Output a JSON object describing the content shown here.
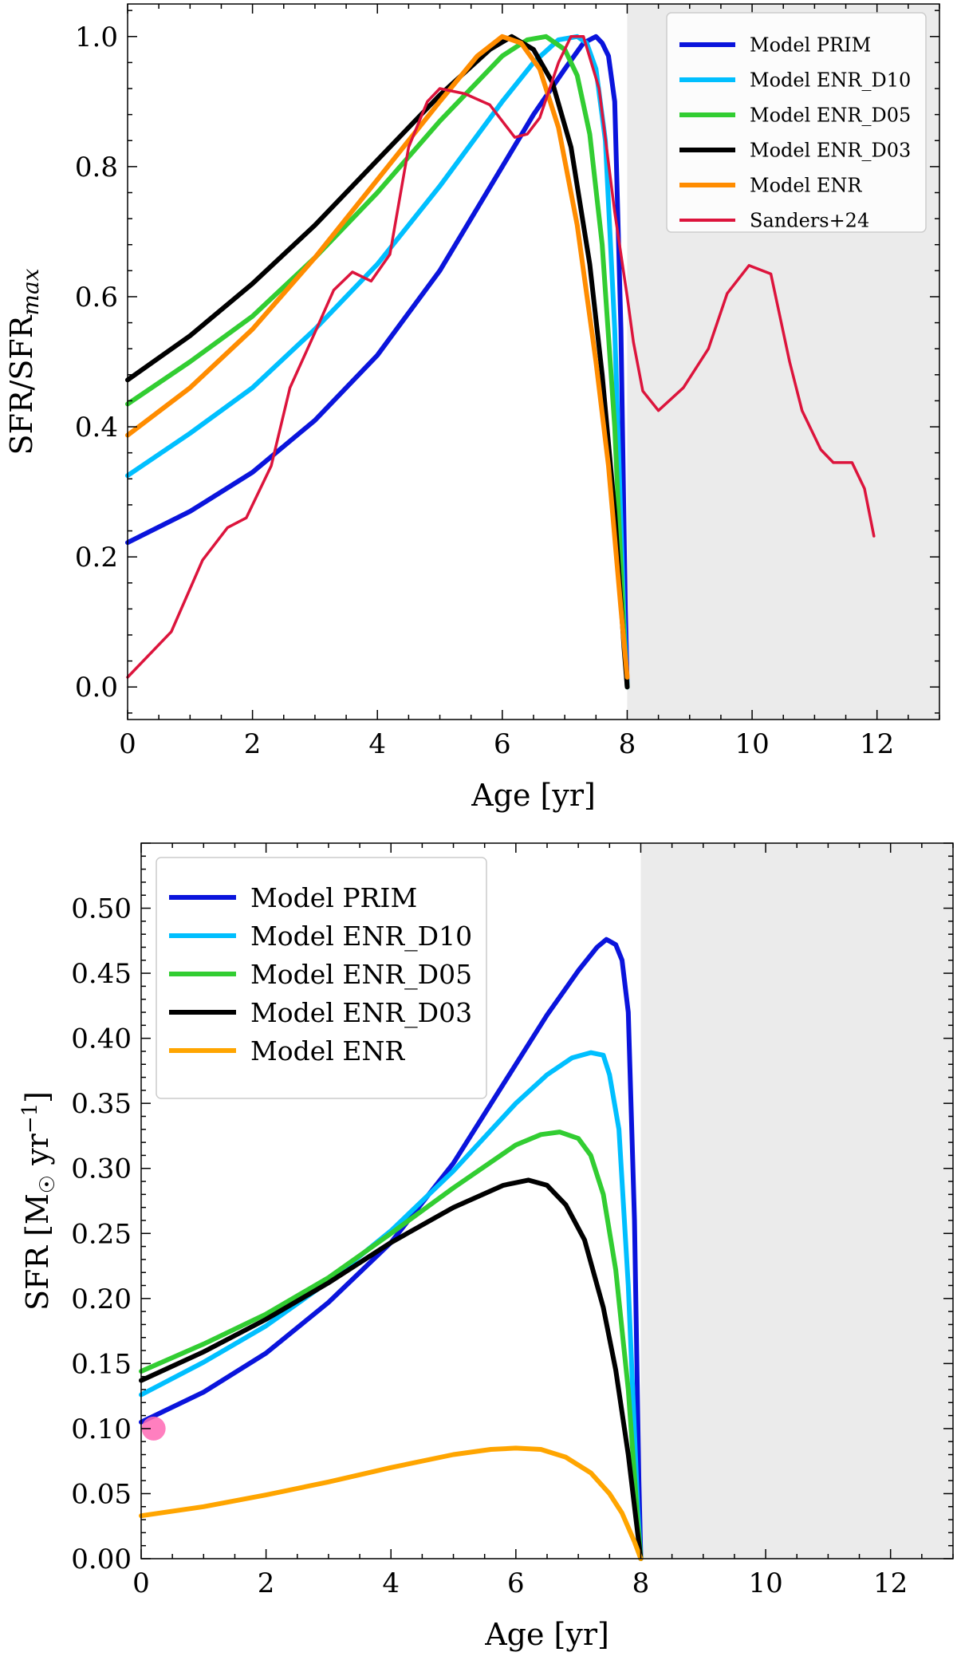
{
  "chart_data": [
    {
      "type": "line",
      "xlabel": "Age [yr]",
      "ylabel": "SFR/SFR",
      "ylabel_sub": "max",
      "xlim": [
        0,
        13
      ],
      "ylim": [
        -0.05,
        1.05
      ],
      "xticks": [
        0,
        2,
        4,
        6,
        8,
        10,
        12
      ],
      "xtick_labels": [
        "0",
        "2",
        "4",
        "6",
        "8",
        "10",
        "12"
      ],
      "yticks": [
        0.0,
        0.2,
        0.4,
        0.6,
        0.8,
        1.0
      ],
      "ytick_labels": [
        "0.0",
        "0.2",
        "0.4",
        "0.6",
        "0.8",
        "1.0"
      ],
      "shaded_region": [
        8,
        13
      ],
      "shade_color": "#ebebeb",
      "legend_position": "top-right",
      "series": [
        {
          "name": "Model PRIM",
          "color": "#0a14dc",
          "x": [
            0,
            1,
            2,
            3,
            4,
            5,
            6,
            6.5,
            7,
            7.3,
            7.5,
            7.6,
            7.7,
            7.8,
            7.9,
            7.97,
            8.0
          ],
          "y": [
            0.222,
            0.27,
            0.33,
            0.41,
            0.51,
            0.64,
            0.8,
            0.88,
            0.95,
            0.99,
            1.0,
            0.99,
            0.97,
            0.9,
            0.55,
            0.12,
            0.0
          ]
        },
        {
          "name": "Model ENR_D10",
          "color": "#00bfff",
          "x": [
            0,
            1,
            2,
            3,
            4,
            5,
            6,
            6.5,
            6.9,
            7.2,
            7.35,
            7.5,
            7.65,
            7.8,
            7.95,
            8.0
          ],
          "y": [
            0.325,
            0.39,
            0.46,
            0.55,
            0.65,
            0.77,
            0.9,
            0.96,
            0.995,
            1.0,
            0.99,
            0.95,
            0.84,
            0.55,
            0.1,
            0.0
          ]
        },
        {
          "name": "Model ENR_D05",
          "color": "#32cd32",
          "x": [
            0,
            1,
            2,
            3,
            4,
            5,
            6,
            6.4,
            6.7,
            7.0,
            7.2,
            7.4,
            7.6,
            7.8,
            7.95,
            8.0
          ],
          "y": [
            0.435,
            0.5,
            0.57,
            0.66,
            0.76,
            0.87,
            0.97,
            0.995,
            1.0,
            0.98,
            0.94,
            0.85,
            0.68,
            0.4,
            0.08,
            0.0
          ]
        },
        {
          "name": "Model ENR_D03",
          "color": "#000000",
          "x": [
            0,
            1,
            2,
            3,
            4,
            5,
            5.8,
            6.15,
            6.5,
            6.8,
            7.1,
            7.4,
            7.6,
            7.8,
            7.95,
            8.0
          ],
          "y": [
            0.472,
            0.54,
            0.62,
            0.71,
            0.81,
            0.91,
            0.98,
            1.0,
            0.98,
            0.93,
            0.83,
            0.65,
            0.48,
            0.27,
            0.06,
            0.0
          ]
        },
        {
          "name": "Model ENR",
          "color": "#ff8c00",
          "x": [
            0,
            1,
            2,
            3,
            4,
            5,
            5.6,
            6.0,
            6.3,
            6.6,
            6.9,
            7.2,
            7.5,
            7.7,
            7.9,
            8.0
          ],
          "y": [
            0.387,
            0.46,
            0.55,
            0.66,
            0.78,
            0.9,
            0.97,
            1.0,
            0.99,
            0.95,
            0.86,
            0.71,
            0.5,
            0.34,
            0.12,
            0.015
          ]
        },
        {
          "name": "Sanders+24",
          "color": "#dc143c",
          "x": [
            0,
            0.7,
            1.2,
            1.6,
            1.9,
            2.3,
            2.6,
            3.0,
            3.3,
            3.6,
            3.9,
            4.2,
            4.5,
            4.8,
            5.0,
            5.4,
            5.8,
            6.2,
            6.4,
            6.6,
            6.9,
            7.1,
            7.3,
            7.55,
            7.8,
            8.0,
            8.1,
            8.25,
            8.5,
            8.9,
            9.3,
            9.6,
            9.95,
            10.3,
            10.6,
            10.8,
            11.1,
            11.3,
            11.6,
            11.8,
            11.95
          ],
          "y": [
            0.015,
            0.085,
            0.195,
            0.245,
            0.26,
            0.34,
            0.46,
            0.545,
            0.61,
            0.638,
            0.624,
            0.665,
            0.83,
            0.9,
            0.92,
            0.912,
            0.895,
            0.845,
            0.85,
            0.875,
            0.96,
            1.0,
            1.0,
            0.92,
            0.73,
            0.6,
            0.53,
            0.455,
            0.425,
            0.46,
            0.52,
            0.605,
            0.648,
            0.635,
            0.5,
            0.425,
            0.365,
            0.345,
            0.345,
            0.305,
            0.232
          ]
        }
      ]
    },
    {
      "type": "line",
      "xlabel": "Age [yr]",
      "ylabel": "SFR [M",
      "ylabel_suffix": " yr",
      "ylabel_exp": "−1",
      "ylabel_close": "]",
      "sun_symbol": "☉",
      "xlim": [
        0,
        13
      ],
      "ylim": [
        0,
        0.55
      ],
      "xticks": [
        0,
        2,
        4,
        6,
        8,
        10,
        12
      ],
      "xtick_labels": [
        "0",
        "2",
        "4",
        "6",
        "8",
        "10",
        "12"
      ],
      "yticks": [
        0.0,
        0.05,
        0.1,
        0.15,
        0.2,
        0.25,
        0.3,
        0.35,
        0.4,
        0.45,
        0.5
      ],
      "ytick_labels": [
        "0.00",
        "0.05",
        "0.10",
        "0.15",
        "0.20",
        "0.25",
        "0.30",
        "0.35",
        "0.40",
        "0.45",
        "0.50"
      ],
      "shaded_region": [
        8,
        13
      ],
      "shade_color": "#ebebeb",
      "legend_position": "top-left",
      "marker": {
        "x": 0.2,
        "y": 0.1,
        "color": "#ff69b4"
      },
      "series": [
        {
          "name": "Model PRIM",
          "color": "#0a14dc",
          "x": [
            0,
            1,
            2,
            3,
            4,
            5,
            6,
            6.5,
            7,
            7.3,
            7.45,
            7.6,
            7.7,
            7.8,
            7.9,
            7.97,
            8.0
          ],
          "y": [
            0.105,
            0.128,
            0.158,
            0.197,
            0.243,
            0.304,
            0.38,
            0.418,
            0.452,
            0.47,
            0.476,
            0.472,
            0.46,
            0.42,
            0.26,
            0.06,
            0.0
          ]
        },
        {
          "name": "Model ENR_D10",
          "color": "#00bfff",
          "x": [
            0,
            1,
            2,
            3,
            4,
            5,
            6,
            6.5,
            6.9,
            7.2,
            7.4,
            7.5,
            7.65,
            7.8,
            7.95,
            8.0
          ],
          "y": [
            0.126,
            0.151,
            0.179,
            0.213,
            0.252,
            0.298,
            0.35,
            0.372,
            0.385,
            0.389,
            0.387,
            0.372,
            0.33,
            0.21,
            0.04,
            0.0
          ]
        },
        {
          "name": "Model ENR_D05",
          "color": "#32cd32",
          "x": [
            0,
            1,
            2,
            3,
            4,
            5,
            6,
            6.4,
            6.7,
            7.0,
            7.2,
            7.4,
            7.6,
            7.8,
            7.95,
            8.0
          ],
          "y": [
            0.144,
            0.165,
            0.188,
            0.216,
            0.25,
            0.285,
            0.318,
            0.326,
            0.328,
            0.323,
            0.31,
            0.28,
            0.222,
            0.13,
            0.03,
            0.0
          ]
        },
        {
          "name": "Model ENR_D03",
          "color": "#000000",
          "x": [
            0,
            1,
            2,
            3,
            4,
            5,
            5.8,
            6.2,
            6.5,
            6.8,
            7.1,
            7.4,
            7.6,
            7.8,
            7.95,
            8.0
          ],
          "y": [
            0.137,
            0.159,
            0.184,
            0.212,
            0.243,
            0.27,
            0.287,
            0.291,
            0.287,
            0.272,
            0.245,
            0.193,
            0.145,
            0.08,
            0.02,
            0.0
          ]
        },
        {
          "name": "Model ENR",
          "color": "#ffa500",
          "x": [
            0,
            1,
            2,
            3,
            4,
            5,
            5.6,
            6.0,
            6.4,
            6.8,
            7.2,
            7.5,
            7.7,
            7.9,
            8.0
          ],
          "y": [
            0.033,
            0.04,
            0.049,
            0.059,
            0.07,
            0.08,
            0.084,
            0.085,
            0.084,
            0.078,
            0.066,
            0.05,
            0.035,
            0.013,
            0.0
          ]
        }
      ]
    }
  ]
}
